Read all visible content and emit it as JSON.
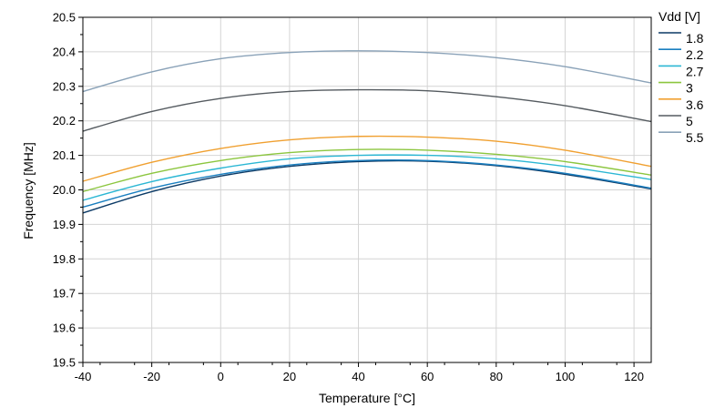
{
  "chart_data": {
    "type": "line",
    "title": "",
    "xlabel": "Temperature [°C]",
    "ylabel": "Frequency [MHz]",
    "xlim": [
      -40,
      125
    ],
    "ylim": [
      19.5,
      20.5
    ],
    "x_ticks": [
      -40,
      -20,
      0,
      20,
      40,
      60,
      80,
      100,
      120
    ],
    "y_ticks": [
      "19.5",
      "19.6",
      "19.7",
      "19.8",
      "19.9",
      "20.0",
      "20.1",
      "20.2",
      "20.3",
      "20.4",
      "20.5"
    ],
    "grid": true,
    "legend_title": "Vdd [V]",
    "legend_position": "right",
    "x": [
      -40,
      -20,
      0,
      20,
      40,
      60,
      80,
      100,
      125
    ],
    "series": [
      {
        "name": "1.8",
        "color": "#0b3a66",
        "values": [
          19.933,
          19.995,
          20.04,
          20.068,
          20.082,
          20.083,
          20.07,
          20.045,
          20.003
        ]
      },
      {
        "name": "2.2",
        "color": "#1a7fc0",
        "values": [
          19.95,
          20.005,
          20.045,
          20.072,
          20.085,
          20.085,
          20.072,
          20.048,
          20.005
        ]
      },
      {
        "name": "2.7",
        "color": "#2cb7d4",
        "values": [
          19.97,
          20.024,
          20.063,
          20.09,
          20.1,
          20.1,
          20.09,
          20.068,
          20.03
        ]
      },
      {
        "name": "3",
        "color": "#8cc63f",
        "values": [
          19.995,
          20.048,
          20.085,
          20.108,
          20.117,
          20.115,
          20.103,
          20.082,
          20.043
        ]
      },
      {
        "name": "3.6",
        "color": "#f0a030",
        "values": [
          20.025,
          20.08,
          20.12,
          20.145,
          20.155,
          20.153,
          20.141,
          20.115,
          20.068
        ]
      },
      {
        "name": "5",
        "color": "#555b60",
        "values": [
          20.17,
          20.227,
          20.265,
          20.285,
          20.29,
          20.287,
          20.27,
          20.244,
          20.198
        ]
      },
      {
        "name": "5.5",
        "color": "#8aa2b8",
        "values": [
          20.285,
          20.342,
          20.38,
          20.398,
          20.403,
          20.398,
          20.383,
          20.357,
          20.31
        ]
      }
    ]
  }
}
